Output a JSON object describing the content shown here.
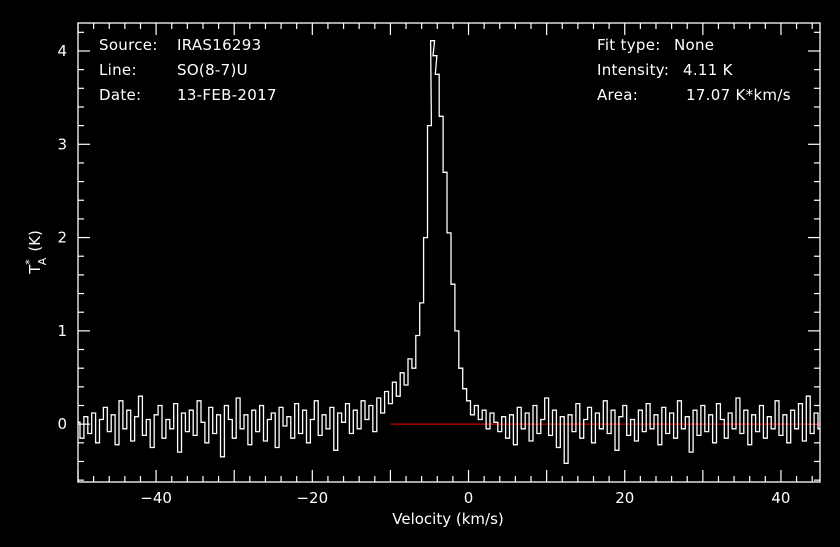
{
  "header": {
    "source_label": "Source:",
    "source_value": "IRAS16293",
    "line_label": "Line:",
    "line_value": "SO(8-7)U",
    "date_label": "Date:",
    "date_value": "13-FEB-2017",
    "fit_label": "Fit type:",
    "fit_value": "None",
    "intensity_label": "Intensity:",
    "intensity_value": "4.11 K",
    "area_label": "Area:",
    "area_value": "17.07 K*km/s"
  },
  "colors": {
    "background": "#000000",
    "axes": "#ffffff",
    "spectrum": "#ffffff",
    "baseline": "#cc0000"
  },
  "chart_data": {
    "type": "line",
    "xlabel": "Velocity (km/s)",
    "ylabel_main": "T",
    "ylabel_sup": "*",
    "ylabel_sub": "A",
    "ylabel_unit": "(K)",
    "xlim": [
      -50,
      45
    ],
    "ylim": [
      -0.62,
      4.3
    ],
    "xticks": [
      -40,
      -20,
      0,
      20,
      40
    ],
    "yticks": [
      0,
      1,
      2,
      3,
      4
    ],
    "baseline": {
      "y": 0,
      "x_start": -10,
      "x_end": 45
    },
    "series": [
      {
        "values": [
          [
            -50.0,
            0.02
          ],
          [
            -49.5,
            -0.15
          ],
          [
            -49.0,
            0.08
          ],
          [
            -48.5,
            -0.1
          ],
          [
            -48.0,
            0.12
          ],
          [
            -47.5,
            -0.2
          ],
          [
            -47.0,
            0.05
          ],
          [
            -46.5,
            0.18
          ],
          [
            -46.0,
            -0.08
          ],
          [
            -45.5,
            0.1
          ],
          [
            -45.0,
            -0.22
          ],
          [
            -44.5,
            0.25
          ],
          [
            -44.0,
            -0.05
          ],
          [
            -43.5,
            0.15
          ],
          [
            -43.0,
            -0.18
          ],
          [
            -42.5,
            0.08
          ],
          [
            -42.0,
            0.3
          ],
          [
            -41.5,
            -0.12
          ],
          [
            -41.0,
            0.05
          ],
          [
            -40.5,
            -0.25
          ],
          [
            -40.0,
            0.1
          ],
          [
            -39.5,
            0.2
          ],
          [
            -39.0,
            -0.15
          ],
          [
            -38.5,
            0.05
          ],
          [
            -38.0,
            -0.05
          ],
          [
            -37.5,
            0.22
          ],
          [
            -37.0,
            -0.3
          ],
          [
            -36.5,
            0.12
          ],
          [
            -36.0,
            -0.08
          ],
          [
            -35.5,
            0.15
          ],
          [
            -35.0,
            -0.12
          ],
          [
            -34.5,
            0.25
          ],
          [
            -34.0,
            0.02
          ],
          [
            -33.5,
            -0.2
          ],
          [
            -33.0,
            0.18
          ],
          [
            -32.5,
            -0.1
          ],
          [
            -32.0,
            0.1
          ],
          [
            -31.5,
            -0.35
          ],
          [
            -31.0,
            0.2
          ],
          [
            -30.5,
            0.05
          ],
          [
            -30.0,
            -0.15
          ],
          [
            -29.5,
            0.28
          ],
          [
            -29.0,
            -0.05
          ],
          [
            -28.5,
            0.1
          ],
          [
            -28.0,
            -0.22
          ],
          [
            -27.5,
            0.15
          ],
          [
            -27.0,
            -0.08
          ],
          [
            -26.5,
            0.2
          ],
          [
            -26.0,
            -0.18
          ],
          [
            -25.5,
            0.05
          ],
          [
            -25.0,
            0.12
          ],
          [
            -24.5,
            -0.25
          ],
          [
            -24.0,
            0.18
          ],
          [
            -23.5,
            -0.02
          ],
          [
            -23.0,
            0.08
          ],
          [
            -22.5,
            -0.15
          ],
          [
            -22.0,
            0.22
          ],
          [
            -21.5,
            -0.1
          ],
          [
            -21.0,
            0.15
          ],
          [
            -20.5,
            -0.2
          ],
          [
            -20.0,
            0.05
          ],
          [
            -19.5,
            0.25
          ],
          [
            -19.0,
            -0.12
          ],
          [
            -18.5,
            0.1
          ],
          [
            -18.0,
            -0.05
          ],
          [
            -17.5,
            0.18
          ],
          [
            -17.0,
            -0.28
          ],
          [
            -16.5,
            0.12
          ],
          [
            -16.0,
            0.02
          ],
          [
            -15.5,
            0.22
          ],
          [
            -15.0,
            -0.1
          ],
          [
            -14.5,
            0.15
          ],
          [
            -14.0,
            -0.05
          ],
          [
            -13.5,
            0.25
          ],
          [
            -13.0,
            0.05
          ],
          [
            -12.5,
            0.2
          ],
          [
            -12.0,
            -0.08
          ],
          [
            -11.5,
            0.28
          ],
          [
            -11.0,
            0.12
          ],
          [
            -10.5,
            0.35
          ],
          [
            -10.0,
            0.22
          ],
          [
            -9.5,
            0.45
          ],
          [
            -9.0,
            0.3
          ],
          [
            -8.5,
            0.55
          ],
          [
            -8.0,
            0.42
          ],
          [
            -7.5,
            0.7
          ],
          [
            -7.0,
            0.6
          ],
          [
            -6.5,
            0.95
          ],
          [
            -6.0,
            1.3
          ],
          [
            -5.5,
            2.0
          ],
          [
            -5.0,
            3.2
          ],
          [
            -4.6,
            4.11
          ],
          [
            -4.3,
            3.95
          ],
          [
            -4.0,
            3.75
          ],
          [
            -3.5,
            3.3
          ],
          [
            -3.0,
            2.7
          ],
          [
            -2.5,
            2.05
          ],
          [
            -2.0,
            1.5
          ],
          [
            -1.5,
            1.0
          ],
          [
            -1.0,
            0.6
          ],
          [
            -0.5,
            0.38
          ],
          [
            0.0,
            0.25
          ],
          [
            0.5,
            0.1
          ],
          [
            1.0,
            0.2
          ],
          [
            1.5,
            0.05
          ],
          [
            2.0,
            0.15
          ],
          [
            2.5,
            -0.05
          ],
          [
            3.0,
            0.12
          ],
          [
            3.5,
            0.02
          ],
          [
            4.0,
            -0.08
          ],
          [
            4.5,
            0.08
          ],
          [
            5.0,
            -0.15
          ],
          [
            5.5,
            0.1
          ],
          [
            6.0,
            -0.22
          ],
          [
            6.5,
            0.18
          ],
          [
            7.0,
            -0.05
          ],
          [
            7.5,
            0.12
          ],
          [
            8.0,
            -0.18
          ],
          [
            8.5,
            0.2
          ],
          [
            9.0,
            -0.1
          ],
          [
            9.5,
            0.05
          ],
          [
            10.0,
            0.28
          ],
          [
            10.5,
            -0.12
          ],
          [
            11.0,
            0.15
          ],
          [
            11.5,
            -0.25
          ],
          [
            12.0,
            0.08
          ],
          [
            12.5,
            -0.42
          ],
          [
            13.0,
            0.1
          ],
          [
            13.5,
            -0.08
          ],
          [
            14.0,
            0.22
          ],
          [
            14.5,
            -0.15
          ],
          [
            15.0,
            0.05
          ],
          [
            15.5,
            0.18
          ],
          [
            16.0,
            -0.2
          ],
          [
            16.5,
            0.12
          ],
          [
            17.0,
            -0.05
          ],
          [
            17.5,
            0.25
          ],
          [
            18.0,
            -0.1
          ],
          [
            18.5,
            0.15
          ],
          [
            19.0,
            -0.28
          ],
          [
            19.5,
            0.08
          ],
          [
            20.0,
            0.2
          ],
          [
            20.5,
            -0.12
          ],
          [
            21.0,
            0.05
          ],
          [
            21.5,
            -0.18
          ],
          [
            22.0,
            0.15
          ],
          [
            22.5,
            -0.08
          ],
          [
            23.0,
            0.22
          ],
          [
            23.5,
            -0.05
          ],
          [
            24.0,
            0.1
          ],
          [
            24.5,
            -0.22
          ],
          [
            25.0,
            0.18
          ],
          [
            25.5,
            -0.1
          ],
          [
            26.0,
            0.12
          ],
          [
            26.5,
            -0.15
          ],
          [
            27.0,
            0.25
          ],
          [
            27.5,
            -0.05
          ],
          [
            28.0,
            0.08
          ],
          [
            28.5,
            -0.3
          ],
          [
            29.0,
            0.15
          ],
          [
            29.5,
            -0.12
          ],
          [
            30.0,
            0.2
          ],
          [
            30.5,
            -0.08
          ],
          [
            31.0,
            0.1
          ],
          [
            31.5,
            -0.2
          ],
          [
            32.0,
            0.22
          ],
          [
            32.5,
            0.05
          ],
          [
            33.0,
            -0.15
          ],
          [
            33.5,
            0.12
          ],
          [
            34.0,
            -0.05
          ],
          [
            34.5,
            0.28
          ],
          [
            35.0,
            -0.1
          ],
          [
            35.5,
            0.15
          ],
          [
            36.0,
            -0.22
          ],
          [
            36.5,
            0.1
          ],
          [
            37.0,
            -0.08
          ],
          [
            37.5,
            0.2
          ],
          [
            38.0,
            -0.15
          ],
          [
            38.5,
            0.08
          ],
          [
            39.0,
            -0.05
          ],
          [
            39.5,
            0.25
          ],
          [
            40.0,
            -0.12
          ],
          [
            40.5,
            0.1
          ],
          [
            41.0,
            -0.2
          ],
          [
            41.5,
            0.15
          ],
          [
            42.0,
            -0.05
          ],
          [
            42.5,
            0.22
          ],
          [
            43.0,
            -0.18
          ],
          [
            43.5,
            0.3
          ],
          [
            44.0,
            -0.1
          ],
          [
            44.5,
            0.12
          ],
          [
            45.0,
            -0.05
          ]
        ]
      }
    ]
  }
}
